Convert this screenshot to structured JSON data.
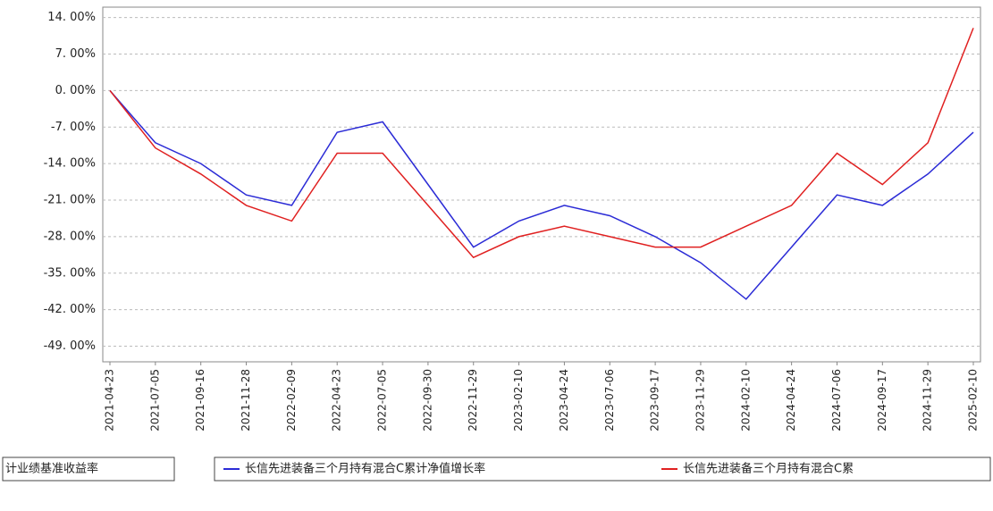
{
  "chart_data": {
    "type": "line",
    "categories": [
      "2021-04-23",
      "2021-07-05",
      "2021-09-16",
      "2021-11-28",
      "2022-02-09",
      "2022-04-23",
      "2022-07-05",
      "2022-09-30",
      "2022-11-29",
      "2023-02-10",
      "2023-04-24",
      "2023-07-06",
      "2023-09-17",
      "2023-11-29",
      "2024-02-10",
      "2024-04-24",
      "2024-07-06",
      "2024-09-17",
      "2024-11-29",
      "2025-02-10"
    ],
    "series": [
      {
        "name": "长信先进装备三个月持有混合C累计净值增长率",
        "color": "#2b2bd6",
        "values": [
          0,
          -10,
          -14,
          -20,
          -22,
          -8,
          -6,
          -18,
          -30,
          -25,
          -22,
          -24,
          -28,
          -33,
          -40,
          -30,
          -20,
          -22,
          -16,
          -8
        ]
      },
      {
        "name": "长信先进装备三个月持有混合C累",
        "color": "#e02020",
        "values": [
          0,
          -11,
          -16,
          -22,
          -25,
          -12,
          -12,
          -22,
          -32,
          -28,
          -26,
          -28,
          -30,
          -30,
          -26,
          -22,
          -12,
          -18,
          -10,
          12
        ]
      }
    ],
    "legend_note": "计业绩基准收益率",
    "ylim": [
      -52,
      16
    ],
    "yticks": [
      {
        "value": 14,
        "label": "14. 00%"
      },
      {
        "value": 7,
        "label": "7. 00%"
      },
      {
        "value": 0,
        "label": "0. 00%"
      },
      {
        "value": -7,
        "label": "-7. 00%"
      },
      {
        "value": -14,
        "label": "-14. 00%"
      },
      {
        "value": -21,
        "label": "-21. 00%"
      },
      {
        "value": -28,
        "label": "-28. 00%"
      },
      {
        "value": -35,
        "label": "-35. 00%"
      },
      {
        "value": -42,
        "label": "-42. 00%"
      },
      {
        "value": -49,
        "label": "-49. 00%"
      }
    ],
    "grid": true
  }
}
